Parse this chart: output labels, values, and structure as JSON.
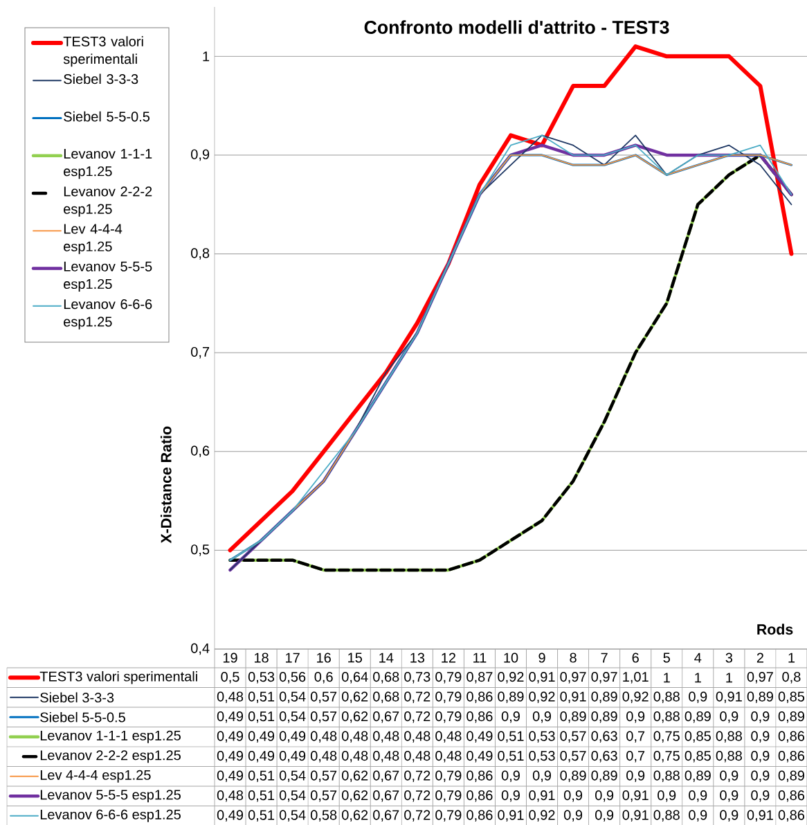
{
  "chart_data": {
    "type": "line",
    "title": "Confronto modelli d'attrito - TEST3",
    "xlabel": "Rods",
    "ylabel": "X-Distance Ratio",
    "categories": [
      "19",
      "18",
      "17",
      "16",
      "15",
      "14",
      "13",
      "12",
      "11",
      "10",
      "9",
      "8",
      "7",
      "6",
      "5",
      "4",
      "3",
      "2",
      "1"
    ],
    "ylim": [
      0.4,
      1.05
    ],
    "yticks": [
      {
        "value": 0.4,
        "label": "0,4"
      },
      {
        "value": 0.5,
        "label": "0,5"
      },
      {
        "value": 0.6,
        "label": "0,6"
      },
      {
        "value": 0.7,
        "label": "0,7"
      },
      {
        "value": 0.8,
        "label": "0,8"
      },
      {
        "value": 0.9,
        "label": "0,9"
      },
      {
        "value": 1,
        "label": "1"
      }
    ],
    "grid": "y",
    "legend": "left",
    "series": [
      {
        "name": "TEST3 valori sperimentali",
        "color": "#ff0000",
        "values": [
          0.5,
          0.53,
          0.56,
          0.6,
          0.64,
          0.68,
          0.73,
          0.79,
          0.87,
          0.92,
          0.91,
          0.97,
          0.97,
          1.01,
          1,
          1,
          1,
          0.97,
          0.8
        ],
        "value_labels": [
          "0,5",
          "0,53",
          "0,56",
          "0,6",
          "0,64",
          "0,68",
          "0,73",
          "0,79",
          "0,87",
          "0,92",
          "0,91",
          "0,97",
          "0,97",
          "1,01",
          "1",
          "1",
          "1",
          "0,97",
          "0,8"
        ]
      },
      {
        "name": "Siebel 3-3-3",
        "color": "#1f3864",
        "values": [
          0.48,
          0.51,
          0.54,
          0.57,
          0.62,
          0.68,
          0.72,
          0.79,
          0.86,
          0.89,
          0.92,
          0.91,
          0.89,
          0.92,
          0.88,
          0.9,
          0.91,
          0.89,
          0.85
        ],
        "value_labels": [
          "0,48",
          "0,51",
          "0,54",
          "0,57",
          "0,62",
          "0,68",
          "0,72",
          "0,79",
          "0,86",
          "0,89",
          "0,92",
          "0,91",
          "0,89",
          "0,92",
          "0,88",
          "0,9",
          "0,91",
          "0,89",
          "0,85"
        ]
      },
      {
        "name": "Siebel 5-5-0.5",
        "color": "#0070c0",
        "values": [
          0.49,
          0.51,
          0.54,
          0.57,
          0.62,
          0.67,
          0.72,
          0.79,
          0.86,
          0.9,
          0.9,
          0.89,
          0.89,
          0.9,
          0.88,
          0.89,
          0.9,
          0.9,
          0.89
        ],
        "value_labels": [
          "0,49",
          "0,51",
          "0,54",
          "0,57",
          "0,62",
          "0,67",
          "0,72",
          "0,79",
          "0,86",
          "0,9",
          "0,9",
          "0,89",
          "0,89",
          "0,9",
          "0,88",
          "0,89",
          "0,9",
          "0,9",
          "0,89"
        ]
      },
      {
        "name": "Levanov 1-1-1 esp1.25",
        "color": "#92d050",
        "values": [
          0.49,
          0.49,
          0.49,
          0.48,
          0.48,
          0.48,
          0.48,
          0.48,
          0.49,
          0.51,
          0.53,
          0.57,
          0.63,
          0.7,
          0.75,
          0.85,
          0.88,
          0.9,
          0.86
        ],
        "value_labels": [
          "0,49",
          "0,49",
          "0,49",
          "0,48",
          "0,48",
          "0,48",
          "0,48",
          "0,48",
          "0,49",
          "0,51",
          "0,53",
          "0,57",
          "0,63",
          "0,7",
          "0,75",
          "0,85",
          "0,88",
          "0,9",
          "0,86"
        ]
      },
      {
        "name": "Levanov 2-2-2 esp1.25",
        "color": "#000000",
        "line_style": "dashed",
        "values": [
          0.49,
          0.49,
          0.49,
          0.48,
          0.48,
          0.48,
          0.48,
          0.48,
          0.49,
          0.51,
          0.53,
          0.57,
          0.63,
          0.7,
          0.75,
          0.85,
          0.88,
          0.9,
          0.86
        ],
        "value_labels": [
          "0,49",
          "0,49",
          "0,49",
          "0,48",
          "0,48",
          "0,48",
          "0,48",
          "0,48",
          "0,49",
          "0,51",
          "0,53",
          "0,57",
          "0,63",
          "0,7",
          "0,75",
          "0,85",
          "0,88",
          "0,9",
          "0,86"
        ]
      },
      {
        "name": "Lev 4-4-4 esp1.25",
        "color": "#f79646",
        "values": [
          0.49,
          0.51,
          0.54,
          0.57,
          0.62,
          0.67,
          0.72,
          0.79,
          0.86,
          0.9,
          0.9,
          0.89,
          0.89,
          0.9,
          0.88,
          0.89,
          0.9,
          0.9,
          0.89
        ],
        "value_labels": [
          "0,49",
          "0,51",
          "0,54",
          "0,57",
          "0,62",
          "0,67",
          "0,72",
          "0,79",
          "0,86",
          "0,9",
          "0,9",
          "0,89",
          "0,89",
          "0,9",
          "0,88",
          "0,89",
          "0,9",
          "0,9",
          "0,89"
        ]
      },
      {
        "name": "Levanov 5-5-5 esp1.25",
        "color": "#7030a0",
        "values": [
          0.48,
          0.51,
          0.54,
          0.57,
          0.62,
          0.67,
          0.72,
          0.79,
          0.86,
          0.9,
          0.91,
          0.9,
          0.9,
          0.91,
          0.9,
          0.9,
          0.9,
          0.9,
          0.86
        ],
        "value_labels": [
          "0,48",
          "0,51",
          "0,54",
          "0,57",
          "0,62",
          "0,67",
          "0,72",
          "0,79",
          "0,86",
          "0,9",
          "0,91",
          "0,9",
          "0,9",
          "0,91",
          "0,9",
          "0,9",
          "0,9",
          "0,9",
          "0,86"
        ]
      },
      {
        "name": "Levanov 6-6-6 esp1.25",
        "color": "#4bacc6",
        "values": [
          0.49,
          0.51,
          0.54,
          0.58,
          0.62,
          0.67,
          0.72,
          0.79,
          0.86,
          0.91,
          0.92,
          0.9,
          0.9,
          0.91,
          0.88,
          0.9,
          0.9,
          0.91,
          0.86
        ],
        "value_labels": [
          "0,49",
          "0,51",
          "0,54",
          "0,58",
          "0,62",
          "0,67",
          "0,72",
          "0,79",
          "0,86",
          "0,91",
          "0,92",
          "0,9",
          "0,9",
          "0,91",
          "0,88",
          "0,9",
          "0,9",
          "0,91",
          "0,86"
        ]
      }
    ]
  }
}
